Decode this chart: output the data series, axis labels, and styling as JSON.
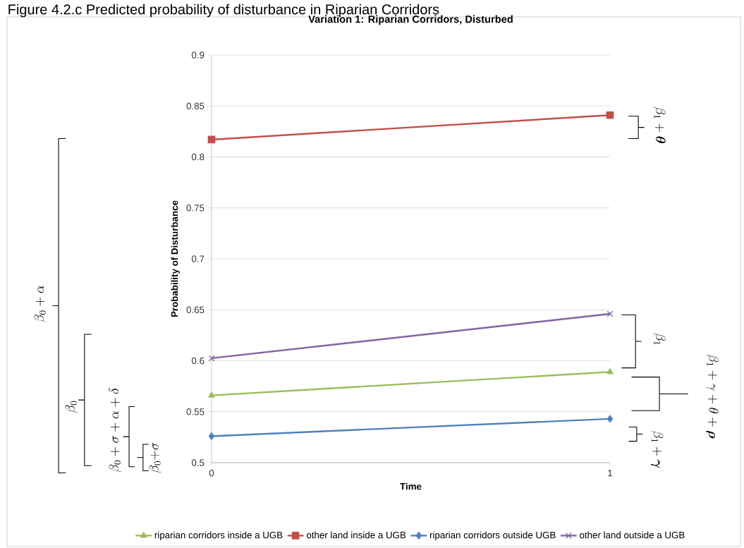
{
  "chart_data": {
    "type": "line",
    "title": "Variation 1:  Riparian Corridors, Disturbed",
    "xlabel": "Time",
    "ylabel": "Probability of Disturbance",
    "x": [
      0,
      1
    ],
    "xlim": [
      0,
      1
    ],
    "xticks": [
      0,
      1
    ],
    "ylim": [
      0.5,
      0.9
    ],
    "yticks": [
      0.5,
      0.55,
      0.6,
      0.65,
      0.7,
      0.75,
      0.8,
      0.85,
      0.9
    ],
    "grid": "y",
    "legend": "bottom",
    "series": [
      {
        "name": "riparian corridors inside a UGB",
        "color": "#9bbb59",
        "marker": "triangle",
        "values": [
          0.566,
          0.589
        ]
      },
      {
        "name": "other land inside a UGB",
        "color": "#c0504d",
        "marker": "square",
        "values": [
          0.817,
          0.841
        ]
      },
      {
        "name": "riparian corridors outside UGB",
        "color": "#4f81bd",
        "marker": "diamond",
        "values": [
          0.526,
          0.543
        ]
      },
      {
        "name": "other land outside a UGB",
        "color": "#8064a2",
        "marker": "cross",
        "values": [
          0.6025,
          0.646
        ]
      }
    ],
    "annotations": [
      "Figure 4.2.c Predicted probability of disturbance in Riparian Corridors",
      "\\beta_1+\\boldsymbol{\\theta}",
      "\\beta_1",
      "\\beta_1+\\gamma+\\theta+\\boldsymbol{\\rho}",
      "\\beta_1+\\boldsymbol{\\gamma}",
      "\\beta_0+\\alpha",
      "\\beta_0",
      "\\beta_0+\\sigma+\\alpha+\\delta",
      "\\beta_0{+}\\sigma"
    ]
  }
}
